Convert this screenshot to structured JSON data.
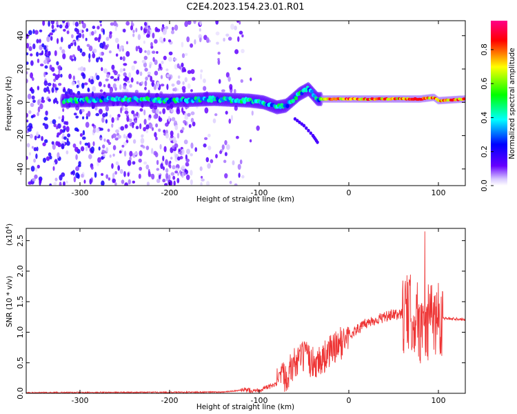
{
  "title": "C2E4.2023.154.23.01.R01",
  "chart_data": [
    {
      "type": "heatmap",
      "xlabel": "Height of straight line (km)",
      "ylabel": "Frequency (Hz)",
      "xlim": [
        -360,
        130
      ],
      "ylim": [
        -50,
        49
      ],
      "xticks": [
        -300,
        -200,
        -100,
        0,
        100
      ],
      "yticks": [
        -40,
        -20,
        0,
        20,
        40
      ],
      "colorbar": {
        "label": "Normalized spectral amplitude",
        "range": [
          0.0,
          0.97
        ],
        "ticks": [
          "0.0",
          "0.2",
          "0.4",
          "0.6",
          "0.8"
        ],
        "colors": [
          "#ffffff",
          "#6600ff",
          "#0000ff",
          "#00ffff",
          "#00ff00",
          "#ffff00",
          "#ff0000",
          "#ff0088"
        ]
      },
      "ridge": {
        "description_x": [
          -315,
          -250,
          -200,
          -150,
          -110,
          -95,
          -80,
          -70,
          -55,
          -45,
          -35,
          -20,
          0,
          50,
          80,
          95,
          100,
          130
        ],
        "y": [
          1,
          2,
          1,
          2,
          1,
          0,
          -3,
          -2,
          5,
          8,
          2,
          2,
          2,
          2,
          2,
          3,
          1,
          2
        ]
      },
      "branch": {
        "x": [
          -60,
          -50,
          -40,
          -35
        ],
        "y": [
          -10,
          -14,
          -20,
          -24
        ]
      }
    },
    {
      "type": "line",
      "xlabel": "Height of straight line (km)",
      "ylabel": "SNR (10 * v/v)",
      "multiplier": "(x10",
      "multiplier_exp": "4",
      "xlim": [
        -360,
        130
      ],
      "ylim": [
        0,
        2.7
      ],
      "xticks": [
        -300,
        -200,
        -100,
        0,
        100
      ],
      "yticks": [
        "0.0",
        "0.5",
        "1.0",
        "1.5",
        "2.0",
        "2.5"
      ],
      "series": [
        {
          "color": "#ee3333",
          "x": [
            -360,
            -140,
            -120,
            -100,
            -80,
            -70,
            -60,
            -50,
            -40,
            -30,
            -20,
            -10,
            0,
            10,
            20,
            30,
            40,
            50,
            60,
            70,
            75,
            80,
            85,
            88,
            92,
            95,
            100,
            110,
            120,
            130
          ],
          "y": [
            0.01,
            0.02,
            0.05,
            0.05,
            0.15,
            0.3,
            0.5,
            0.6,
            0.5,
            0.55,
            0.7,
            0.8,
            0.95,
            1.05,
            1.15,
            1.2,
            1.25,
            1.28,
            1.3,
            1.3,
            1.25,
            1.1,
            1.2,
            1.1,
            1.3,
            1.25,
            1.25,
            1.22,
            1.22,
            1.21
          ]
        }
      ]
    }
  ]
}
